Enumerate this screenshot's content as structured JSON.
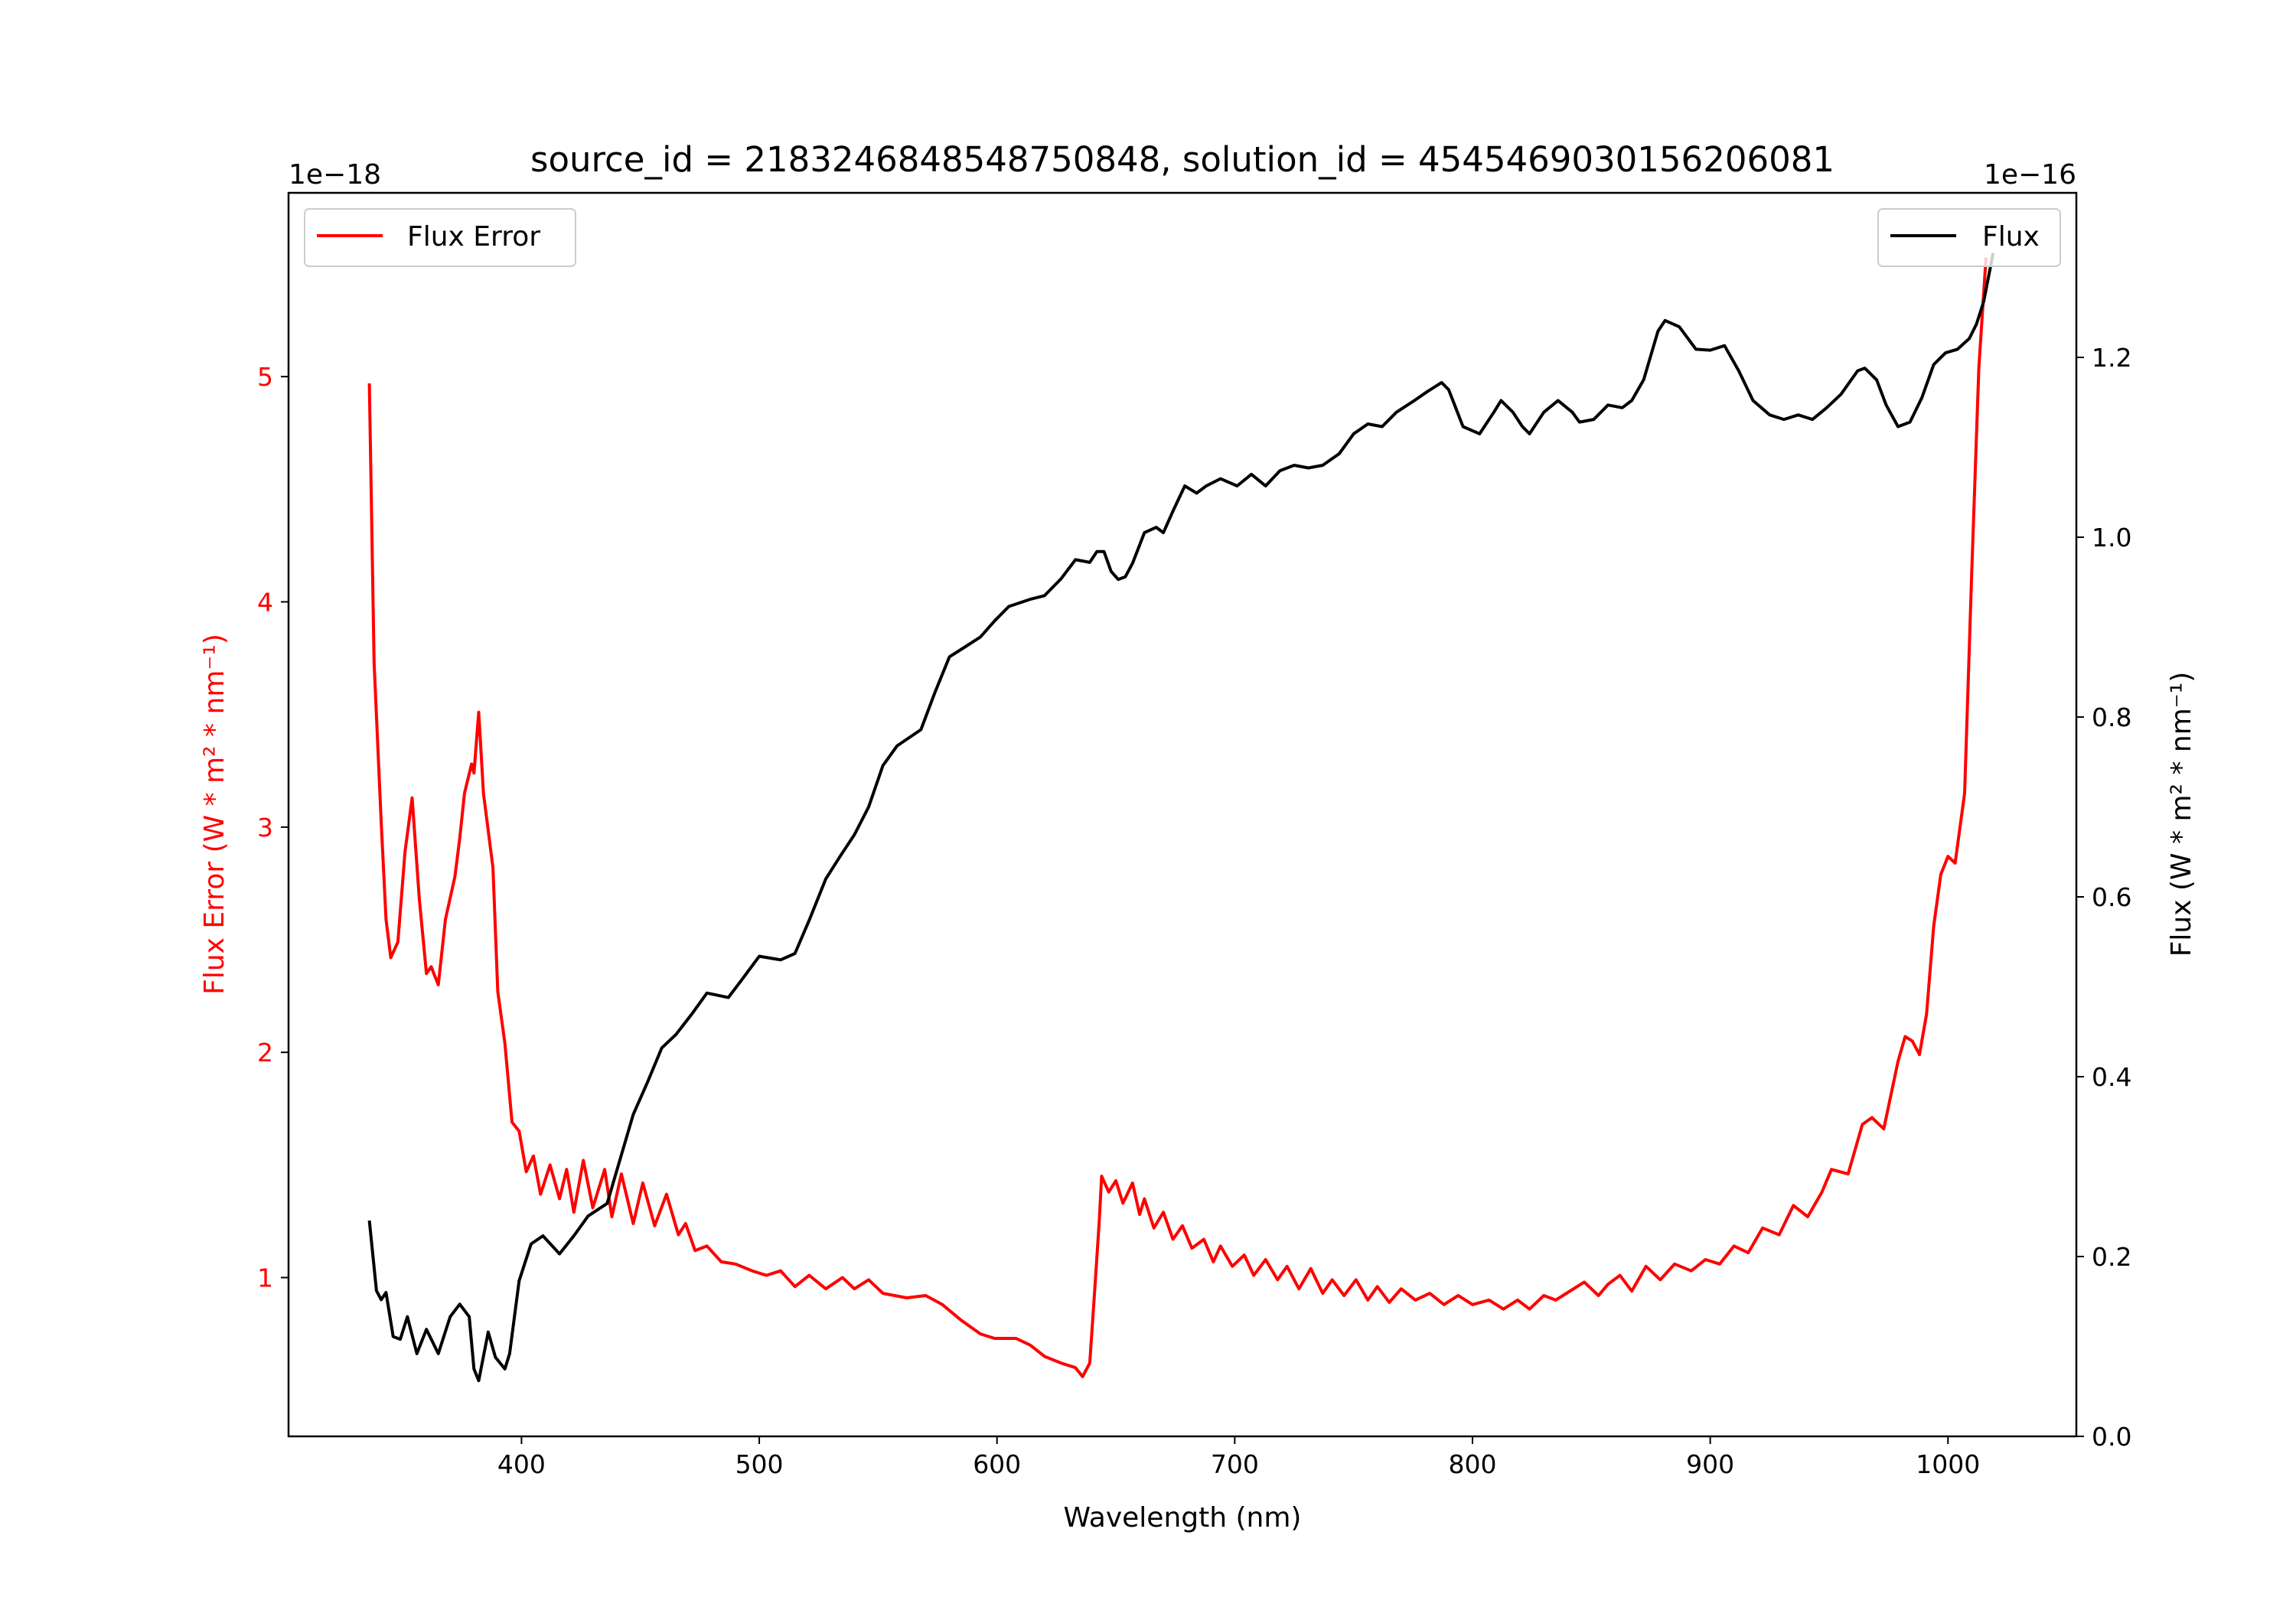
{
  "chart_data": {
    "type": "line",
    "title": "source_id = 2183246848548750848, solution_id = 4545469030156206081",
    "xlabel": "Wavelength (nm)",
    "xlim": [
      302,
      1054
    ],
    "xticks": [
      400,
      500,
      600,
      700,
      800,
      900,
      1000
    ],
    "grid": false,
    "left_axis": {
      "label": "Flux Error (W * m² * nm⁻¹)",
      "offset_text": "1e−18",
      "ylim": [
        0.295,
        5.816
      ],
      "ticks": [
        1,
        2,
        3,
        4,
        5
      ],
      "color": "#ff0000"
    },
    "right_axis": {
      "label": "Flux (W * m² * nm⁻¹)",
      "offset_text": "1e−16",
      "ylim": [
        0,
        1.383
      ],
      "ticks": [
        "0.0",
        "0.2",
        "0.4",
        "0.6",
        "0.8",
        "1.0",
        "1.2"
      ],
      "color": "#000000"
    },
    "series": [
      {
        "name": "Flux Error",
        "axis": "left",
        "color": "#ff0000",
        "legend": "top-left",
        "points": [
          [
            336,
            4.97
          ],
          [
            338,
            3.73
          ],
          [
            341,
            3.02
          ],
          [
            343,
            2.59
          ],
          [
            345,
            2.42
          ],
          [
            348,
            2.49
          ],
          [
            351,
            2.89
          ],
          [
            354,
            3.13
          ],
          [
            357,
            2.68
          ],
          [
            360,
            2.35
          ],
          [
            362,
            2.38
          ],
          [
            365,
            2.3
          ],
          [
            368,
            2.59
          ],
          [
            372,
            2.78
          ],
          [
            374,
            2.95
          ],
          [
            376,
            3.15
          ],
          [
            379,
            3.28
          ],
          [
            380,
            3.24
          ],
          [
            382,
            3.51
          ],
          [
            384,
            3.15
          ],
          [
            388,
            2.82
          ],
          [
            390,
            2.27
          ],
          [
            393,
            2.04
          ],
          [
            396,
            1.69
          ],
          [
            399,
            1.65
          ],
          [
            402,
            1.47
          ],
          [
            405,
            1.54
          ],
          [
            408,
            1.37
          ],
          [
            412,
            1.5
          ],
          [
            416,
            1.35
          ],
          [
            419,
            1.48
          ],
          [
            422,
            1.29
          ],
          [
            426,
            1.52
          ],
          [
            430,
            1.31
          ],
          [
            435,
            1.48
          ],
          [
            438,
            1.27
          ],
          [
            442,
            1.46
          ],
          [
            447,
            1.24
          ],
          [
            451,
            1.42
          ],
          [
            456,
            1.23
          ],
          [
            461,
            1.37
          ],
          [
            466,
            1.19
          ],
          [
            469,
            1.24
          ],
          [
            473,
            1.12
          ],
          [
            478,
            1.14
          ],
          [
            484,
            1.07
          ],
          [
            490,
            1.06
          ],
          [
            497,
            1.03
          ],
          [
            503,
            1.01
          ],
          [
            509,
            1.03
          ],
          [
            515,
            0.96
          ],
          [
            521,
            1.01
          ],
          [
            528,
            0.95
          ],
          [
            535,
            1.0
          ],
          [
            540,
            0.95
          ],
          [
            546,
            0.99
          ],
          [
            552,
            0.93
          ],
          [
            562,
            0.91
          ],
          [
            570,
            0.92
          ],
          [
            577,
            0.88
          ],
          [
            585,
            0.81
          ],
          [
            593,
            0.75
          ],
          [
            599,
            0.73
          ],
          [
            608,
            0.73
          ],
          [
            614,
            0.7
          ],
          [
            620,
            0.65
          ],
          [
            627,
            0.62
          ],
          [
            633,
            0.6
          ],
          [
            636,
            0.56
          ],
          [
            639,
            0.62
          ],
          [
            641,
            0.93
          ],
          [
            643,
            1.25
          ],
          [
            644,
            1.45
          ],
          [
            647,
            1.38
          ],
          [
            650,
            1.43
          ],
          [
            653,
            1.33
          ],
          [
            657,
            1.42
          ],
          [
            660,
            1.28
          ],
          [
            662,
            1.35
          ],
          [
            666,
            1.22
          ],
          [
            670,
            1.29
          ],
          [
            674,
            1.17
          ],
          [
            678,
            1.23
          ],
          [
            682,
            1.13
          ],
          [
            687,
            1.17
          ],
          [
            691,
            1.07
          ],
          [
            694,
            1.14
          ],
          [
            699,
            1.05
          ],
          [
            704,
            1.1
          ],
          [
            708,
            1.01
          ],
          [
            713,
            1.08
          ],
          [
            718,
            0.99
          ],
          [
            722,
            1.05
          ],
          [
            727,
            0.95
          ],
          [
            732,
            1.04
          ],
          [
            737,
            0.93
          ],
          [
            741,
            0.99
          ],
          [
            746,
            0.92
          ],
          [
            751,
            0.99
          ],
          [
            756,
            0.9
          ],
          [
            760,
            0.96
          ],
          [
            765,
            0.89
          ],
          [
            770,
            0.95
          ],
          [
            776,
            0.9
          ],
          [
            782,
            0.93
          ],
          [
            788,
            0.88
          ],
          [
            794,
            0.92
          ],
          [
            800,
            0.88
          ],
          [
            807,
            0.9
          ],
          [
            813,
            0.86
          ],
          [
            819,
            0.9
          ],
          [
            824,
            0.86
          ],
          [
            830,
            0.92
          ],
          [
            835,
            0.9
          ],
          [
            841,
            0.94
          ],
          [
            847,
            0.98
          ],
          [
            853,
            0.92
          ],
          [
            857,
            0.97
          ],
          [
            862,
            1.01
          ],
          [
            867,
            0.94
          ],
          [
            873,
            1.05
          ],
          [
            879,
            0.99
          ],
          [
            885,
            1.06
          ],
          [
            892,
            1.03
          ],
          [
            898,
            1.08
          ],
          [
            904,
            1.06
          ],
          [
            910,
            1.14
          ],
          [
            916,
            1.11
          ],
          [
            922,
            1.22
          ],
          [
            929,
            1.19
          ],
          [
            935,
            1.32
          ],
          [
            941,
            1.27
          ],
          [
            947,
            1.38
          ],
          [
            951,
            1.48
          ],
          [
            958,
            1.46
          ],
          [
            964,
            1.68
          ],
          [
            968,
            1.71
          ],
          [
            973,
            1.66
          ],
          [
            979,
            1.96
          ],
          [
            982,
            2.07
          ],
          [
            985,
            2.05
          ],
          [
            988,
            1.99
          ],
          [
            991,
            2.17
          ],
          [
            994,
            2.56
          ],
          [
            997,
            2.79
          ],
          [
            1000,
            2.87
          ],
          [
            1003,
            2.84
          ],
          [
            1007,
            3.15
          ],
          [
            1010,
            4.13
          ],
          [
            1013,
            5.04
          ],
          [
            1016,
            5.53
          ]
        ]
      },
      {
        "name": "Flux",
        "axis": "right",
        "color": "#000000",
        "legend": "top-right",
        "points": [
          [
            336,
            0.24
          ],
          [
            339,
            0.162
          ],
          [
            341,
            0.152
          ],
          [
            343,
            0.16
          ],
          [
            346,
            0.111
          ],
          [
            349,
            0.108
          ],
          [
            352,
            0.133
          ],
          [
            356,
            0.092
          ],
          [
            360,
            0.119
          ],
          [
            365,
            0.092
          ],
          [
            370,
            0.133
          ],
          [
            374,
            0.147
          ],
          [
            378,
            0.133
          ],
          [
            380,
            0.075
          ],
          [
            382,
            0.062
          ],
          [
            386,
            0.116
          ],
          [
            389,
            0.088
          ],
          [
            393,
            0.075
          ],
          [
            395,
            0.092
          ],
          [
            399,
            0.173
          ],
          [
            404,
            0.214
          ],
          [
            409,
            0.223
          ],
          [
            416,
            0.203
          ],
          [
            422,
            0.223
          ],
          [
            428,
            0.245
          ],
          [
            436,
            0.259
          ],
          [
            441,
            0.304
          ],
          [
            447,
            0.358
          ],
          [
            453,
            0.394
          ],
          [
            459,
            0.432
          ],
          [
            465,
            0.447
          ],
          [
            472,
            0.471
          ],
          [
            478,
            0.493
          ],
          [
            487,
            0.488
          ],
          [
            493,
            0.509
          ],
          [
            500,
            0.534
          ],
          [
            509,
            0.53
          ],
          [
            515,
            0.537
          ],
          [
            521,
            0.574
          ],
          [
            528,
            0.62
          ],
          [
            534,
            0.645
          ],
          [
            540,
            0.669
          ],
          [
            546,
            0.7
          ],
          [
            552,
            0.746
          ],
          [
            558,
            0.768
          ],
          [
            568,
            0.786
          ],
          [
            574,
            0.828
          ],
          [
            580,
            0.867
          ],
          [
            586,
            0.877
          ],
          [
            593,
            0.889
          ],
          [
            599,
            0.907
          ],
          [
            605,
            0.923
          ],
          [
            614,
            0.931
          ],
          [
            620,
            0.935
          ],
          [
            627,
            0.954
          ],
          [
            633,
            0.975
          ],
          [
            639,
            0.972
          ],
          [
            642,
            0.984
          ],
          [
            645,
            0.984
          ],
          [
            648,
            0.962
          ],
          [
            651,
            0.953
          ],
          [
            654,
            0.956
          ],
          [
            657,
            0.971
          ],
          [
            662,
            1.005
          ],
          [
            667,
            1.011
          ],
          [
            670,
            1.005
          ],
          [
            674,
            1.029
          ],
          [
            679,
            1.057
          ],
          [
            684,
            1.049
          ],
          [
            688,
            1.057
          ],
          [
            694,
            1.065
          ],
          [
            701,
            1.057
          ],
          [
            707,
            1.07
          ],
          [
            713,
            1.057
          ],
          [
            719,
            1.074
          ],
          [
            725,
            1.08
          ],
          [
            731,
            1.077
          ],
          [
            737,
            1.08
          ],
          [
            744,
            1.093
          ],
          [
            750,
            1.115
          ],
          [
            756,
            1.126
          ],
          [
            762,
            1.123
          ],
          [
            768,
            1.139
          ],
          [
            775,
            1.151
          ],
          [
            781,
            1.162
          ],
          [
            787,
            1.172
          ],
          [
            790,
            1.164
          ],
          [
            796,
            1.123
          ],
          [
            803,
            1.115
          ],
          [
            809,
            1.139
          ],
          [
            812,
            1.152
          ],
          [
            817,
            1.139
          ],
          [
            821,
            1.123
          ],
          [
            824,
            1.115
          ],
          [
            830,
            1.139
          ],
          [
            836,
            1.152
          ],
          [
            842,
            1.139
          ],
          [
            845,
            1.128
          ],
          [
            851,
            1.131
          ],
          [
            857,
            1.147
          ],
          [
            863,
            1.144
          ],
          [
            867,
            1.152
          ],
          [
            872,
            1.175
          ],
          [
            878,
            1.229
          ],
          [
            881,
            1.241
          ],
          [
            887,
            1.234
          ],
          [
            894,
            1.209
          ],
          [
            900,
            1.208
          ],
          [
            906,
            1.213
          ],
          [
            912,
            1.185
          ],
          [
            918,
            1.152
          ],
          [
            925,
            1.136
          ],
          [
            931,
            1.131
          ],
          [
            937,
            1.136
          ],
          [
            943,
            1.131
          ],
          [
            949,
            1.144
          ],
          [
            955,
            1.159
          ],
          [
            962,
            1.185
          ],
          [
            965,
            1.188
          ],
          [
            970,
            1.175
          ],
          [
            974,
            1.147
          ],
          [
            979,
            1.123
          ],
          [
            984,
            1.128
          ],
          [
            989,
            1.155
          ],
          [
            994,
            1.192
          ],
          [
            999,
            1.205
          ],
          [
            1004,
            1.209
          ],
          [
            1009,
            1.221
          ],
          [
            1012,
            1.237
          ],
          [
            1015,
            1.262
          ],
          [
            1019,
            1.316
          ]
        ]
      }
    ]
  }
}
